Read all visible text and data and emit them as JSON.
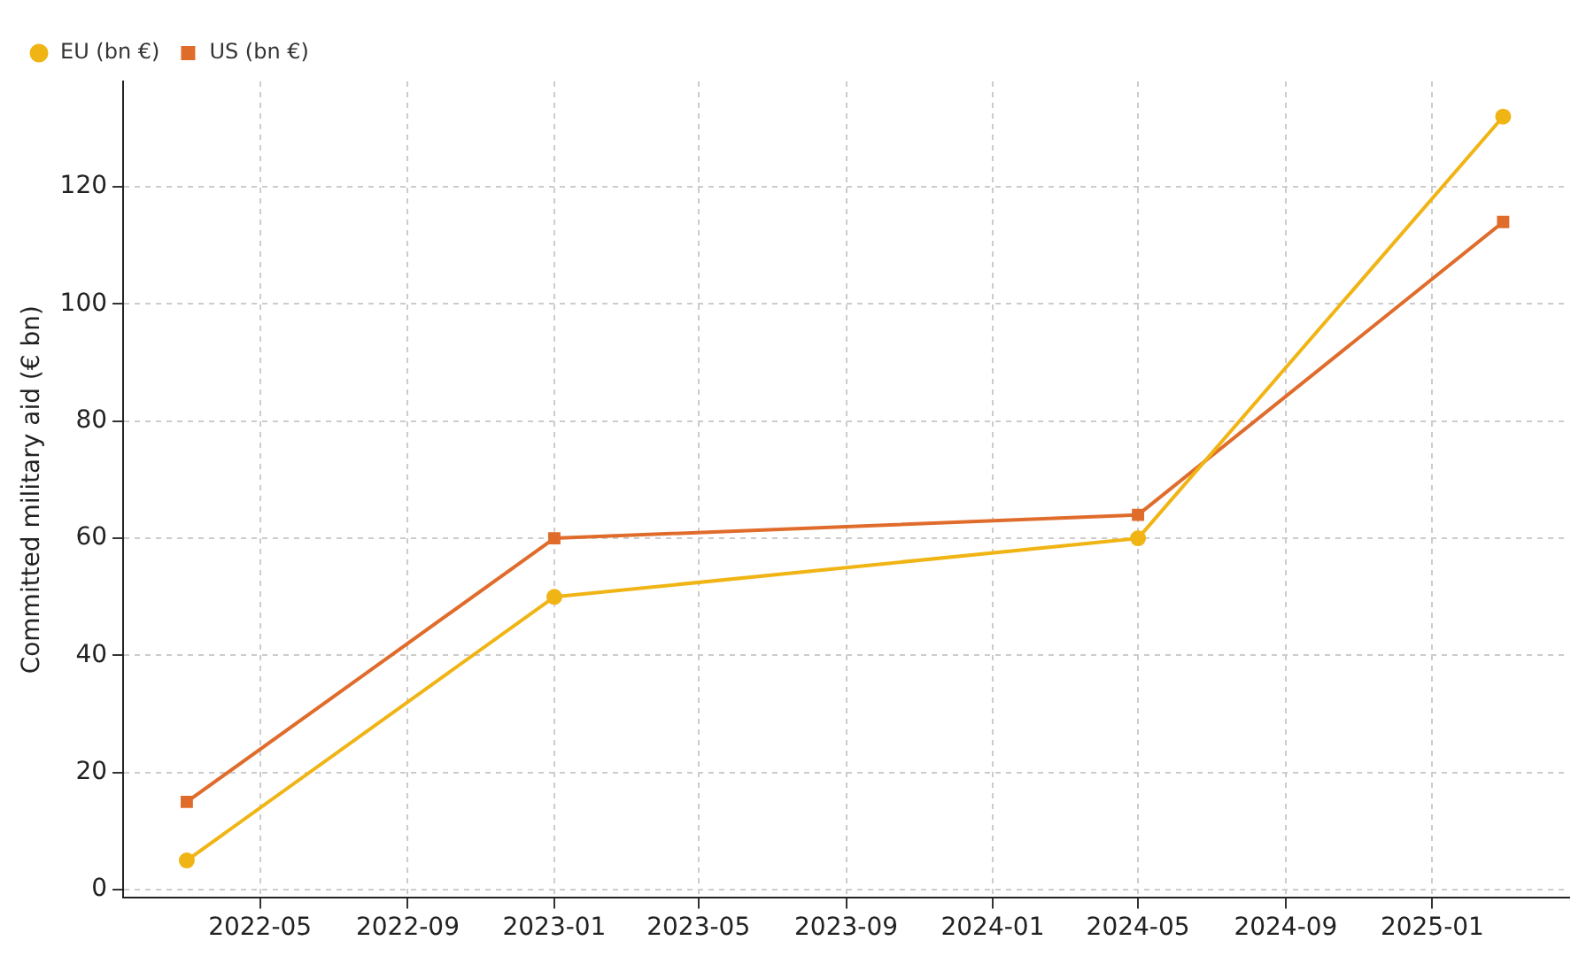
{
  "chart_data": {
    "type": "line",
    "ylabel": "Committed military aid (€ bn)",
    "x": [
      "2022-03-01",
      "2023-01-01",
      "2024-05-01",
      "2025-03-01"
    ],
    "series": [
      {
        "name": "EU (bn €)",
        "color": "#f0b414",
        "marker": "circle",
        "values": [
          5,
          50,
          60,
          132
        ]
      },
      {
        "name": "US (bn €)",
        "color": "#e06c2c",
        "marker": "square",
        "values": [
          15,
          60,
          64,
          114
        ]
      }
    ],
    "xlim": [
      "2022-01-07",
      "2025-04-25"
    ],
    "xticks": [
      "2022-05",
      "2022-09",
      "2023-01",
      "2023-05",
      "2023-09",
      "2024-01",
      "2024-05",
      "2024-09",
      "2025-01"
    ],
    "ylim": [
      -1.4,
      138
    ],
    "yticks": [
      0,
      20,
      40,
      60,
      80,
      100,
      120
    ],
    "grid": true,
    "legend": "top left",
    "line_style": "solid"
  }
}
